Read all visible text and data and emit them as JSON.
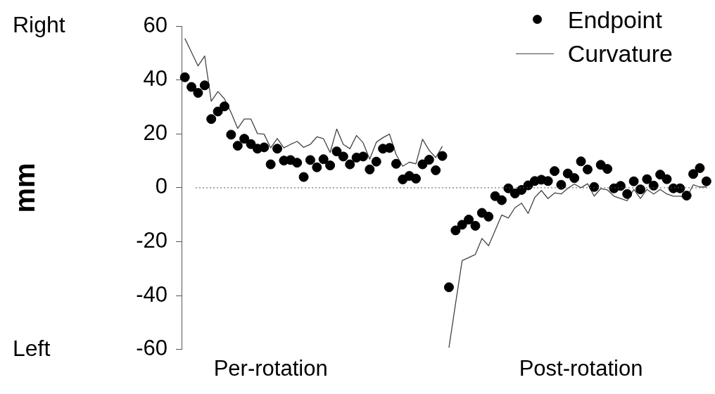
{
  "chart_data": {
    "type": "line",
    "categories": [
      null,
      null,
      null,
      null,
      null,
      null,
      null,
      null,
      null,
      null,
      null,
      null,
      null,
      "Per-rotation",
      null,
      null,
      null,
      null,
      null,
      null,
      null,
      null,
      null,
      null,
      null,
      null,
      null,
      null,
      null,
      null,
      null,
      null,
      null,
      null,
      null,
      null,
      null,
      null,
      null,
      null,
      null,
      null,
      null,
      null,
      null,
      null,
      null,
      null,
      null,
      null,
      null,
      null,
      null,
      null,
      null,
      null,
      null,
      null,
      null,
      null,
      "Post-rotation",
      null,
      null,
      null,
      null,
      null,
      null,
      null,
      null,
      null,
      null,
      null,
      null,
      null,
      null,
      null,
      null,
      null,
      null,
      null
    ],
    "ylabel": "mm",
    "ylim": [
      -60,
      60
    ],
    "yticks": [
      -60,
      -40,
      -20,
      0,
      20,
      40,
      60
    ],
    "annotations": [
      "Right",
      "Left"
    ],
    "ref_lines": [
      {
        "axis": "y",
        "value": 0,
        "color": "#555555",
        "line_style": "dotted"
      }
    ],
    "legend": "top right",
    "series": [
      {
        "name": "Endpoint",
        "type": "scatter",
        "marker": "circle",
        "color": "#000000",
        "values": [
          41,
          37.4,
          35.2,
          38,
          25.5,
          28.3,
          30.2,
          19.7,
          15.6,
          18.2,
          16.2,
          14.5,
          15,
          8.7,
          14.5,
          10.1,
          10.3,
          9.3,
          4,
          10.3,
          7.6,
          10.6,
          8.3,
          13.5,
          11.6,
          8.7,
          11.2,
          11.6,
          6.8,
          9.7,
          14.5,
          14.8,
          8.9,
          3.1,
          4.4,
          3.4,
          8.7,
          10.4,
          6.5,
          11.8,
          -36.9,
          -15.8,
          -13.7,
          -11.8,
          -14.1,
          -9.3,
          -10.7,
          -3.1,
          -4.6,
          -0.2,
          -2.1,
          -0.8,
          0.9,
          2.5,
          3,
          2.5,
          6.2,
          1.1,
          5.3,
          3.6,
          9.8,
          6.8,
          0.3,
          8.5,
          7,
          -0.2,
          0.7,
          -2.3,
          2.4,
          -0.6,
          3.2,
          0.8,
          4.9,
          3.2,
          -0.2,
          -0.2,
          -2.9,
          5.1,
          7.3,
          2.4
        ]
      },
      {
        "name": "Curvature",
        "type": "line",
        "marker": "none",
        "line_style": "solid",
        "color": "#444444",
        "values": [
          55.4,
          50.3,
          45.2,
          48.9,
          32.1,
          35.7,
          33,
          27.9,
          22,
          25.5,
          25.5,
          20.1,
          19.9,
          14.8,
          18.3,
          14.8,
          16.1,
          17.2,
          15,
          16.1,
          18.9,
          18.2,
          13.1,
          21.8,
          16.1,
          14.5,
          19.4,
          16.7,
          10.6,
          16.9,
          18.6,
          19.9,
          12.3,
          8,
          9.5,
          8.9,
          18,
          13.9,
          11.2,
          15.4,
          null,
          null,
          null,
          null,
          null,
          null,
          null,
          null,
          null,
          null,
          null,
          null,
          null,
          null,
          null,
          null,
          null,
          null,
          null,
          null,
          null,
          null,
          null,
          null,
          null,
          null,
          null,
          null,
          null,
          null,
          null,
          null,
          null,
          null,
          null,
          null,
          null,
          null,
          null,
          null
        ]
      },
      {
        "name": null,
        "type": "line",
        "marker": "none",
        "line_style": "solid",
        "color": "#444444",
        "values": [
          null,
          null,
          null,
          null,
          null,
          null,
          null,
          null,
          null,
          null,
          null,
          null,
          null,
          null,
          null,
          null,
          null,
          null,
          null,
          null,
          null,
          null,
          null,
          null,
          null,
          null,
          null,
          null,
          null,
          null,
          null,
          null,
          null,
          null,
          null,
          null,
          null,
          null,
          null,
          null,
          -59.3,
          -43,
          -27,
          -25.9,
          -24.7,
          -18.8,
          -21.5,
          -15.8,
          -10.1,
          -11.2,
          -7.4,
          -5.7,
          -9.5,
          -3.6,
          -1,
          -4,
          -1.9,
          -2.3,
          -0.2,
          1.4,
          0,
          1.5,
          -3.1,
          -0.3,
          -0.8,
          -3.1,
          -4,
          -4.8,
          -0.6,
          -4,
          -0.6,
          -2.3,
          -0.6,
          -2.3,
          -3.1,
          -3.1,
          -3.6,
          1.1,
          0.3,
          0.3
        ]
      }
    ]
  }
}
